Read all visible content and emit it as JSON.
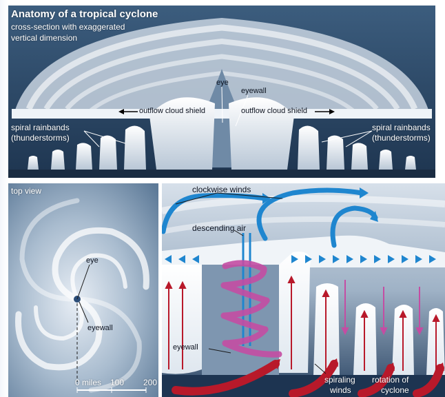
{
  "top": {
    "title": "Anatomy of a tropical cyclone",
    "subtitle_line1": "cross-section with exaggerated",
    "subtitle_line2": "vertical dimension",
    "eye": "eye",
    "eyewall": "eyewall",
    "outflow_left": "outflow cloud shield",
    "outflow_right": "outflow cloud shield",
    "rainbands_left_1": "spiral rainbands",
    "rainbands_left_2": "(thunderstorms)",
    "rainbands_right_1": "spiral rainbands",
    "rainbands_right_2": "(thunderstorms)"
  },
  "topview": {
    "title": "top view",
    "eye": "eye",
    "eyewall": "eyewall",
    "scale_0": "0 miles",
    "scale_100": "100",
    "scale_200": "200"
  },
  "detail": {
    "clockwise": "clockwise winds",
    "descending": "descending air",
    "eyewall": "eyewall",
    "spiraling_1": "spiraling",
    "spiraling_2": "winds",
    "rotation_1": "rotation of",
    "rotation_2": "cyclone"
  },
  "colors": {
    "bg_dark": "#25415f",
    "cloud": "#f2f6fa",
    "blue_arrow": "#1f86cf",
    "red_arrow": "#b8192a",
    "magenta": "#c44da3"
  }
}
